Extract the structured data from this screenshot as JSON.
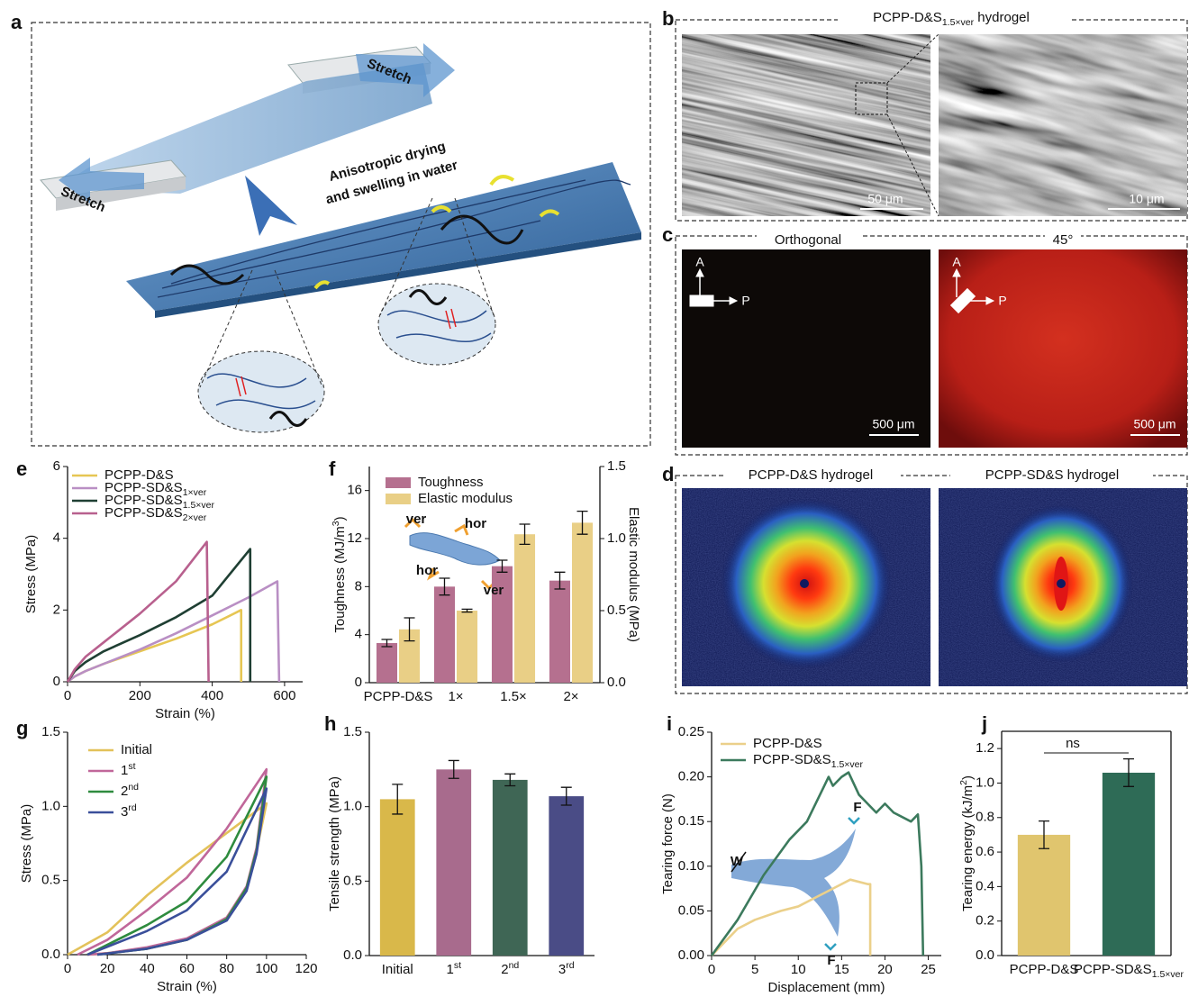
{
  "figure": {
    "a": {
      "label": "a",
      "stretch_top": "Stretch",
      "stretch_bottom": "Stretch",
      "process": [
        "Anisotropic drying",
        "and swelling in water"
      ]
    },
    "b": {
      "label": "b",
      "title": "PCPP-D&S1.5×ver hydrogel",
      "scale_bars": [
        "50 μm",
        "10 μm"
      ]
    },
    "c": {
      "label": "c",
      "titles": [
        "Orthogonal",
        "45°"
      ],
      "analyzer": "A",
      "polarizer": "P",
      "scale_bars": [
        "500 μm",
        "500 μm"
      ]
    },
    "d": {
      "label": "d",
      "titles": [
        "PCPP-D&S hydrogel",
        "PCPP-SD&S hydrogel"
      ]
    }
  },
  "chart_data": [
    {
      "panel": "e",
      "type": "line",
      "xlabel": "Strain (%)",
      "ylabel": "Stress (MPa)",
      "xlim": [
        0,
        650
      ],
      "ylim": [
        0,
        6
      ],
      "xticks": [
        0,
        200,
        400,
        600
      ],
      "yticks": [
        0,
        2,
        4,
        6
      ],
      "legend": "upper left",
      "series": [
        {
          "name": "PCPP-D&S",
          "color": "#e6c653",
          "x": [
            0,
            20,
            50,
            100,
            200,
            300,
            400,
            480,
            480
          ],
          "values": [
            0,
            0.15,
            0.3,
            0.5,
            0.85,
            1.2,
            1.6,
            2.0,
            0
          ]
        },
        {
          "name": "PCPP-SD&S1×ver",
          "color": "#b98fc4",
          "x": [
            0,
            20,
            50,
            100,
            200,
            300,
            400,
            500,
            580,
            585
          ],
          "values": [
            0,
            0.15,
            0.3,
            0.5,
            0.9,
            1.35,
            1.85,
            2.35,
            2.8,
            0
          ]
        },
        {
          "name": "PCPP-SD&S1.5×ver",
          "color": "#1f3f33",
          "x": [
            0,
            20,
            50,
            100,
            200,
            300,
            400,
            505,
            505
          ],
          "values": [
            0,
            0.3,
            0.55,
            0.85,
            1.3,
            1.8,
            2.4,
            3.7,
            0
          ]
        },
        {
          "name": "PCPP-SD&S2×ver",
          "color": "#b8608e",
          "x": [
            0,
            20,
            50,
            100,
            200,
            300,
            385,
            390
          ],
          "values": [
            0,
            0.35,
            0.7,
            1.1,
            1.9,
            2.8,
            3.9,
            0
          ]
        }
      ]
    },
    {
      "panel": "f",
      "type": "bar",
      "ylabel": "Toughness (MJ/m3)",
      "y2label": "Elastic modulus (MPa)",
      "categories": [
        "PCPP-D&S",
        "1×",
        "1.5×",
        "2×"
      ],
      "ylim": [
        0,
        18
      ],
      "yticks": [
        0,
        4,
        8,
        12,
        16
      ],
      "y2lim": [
        0,
        1.5
      ],
      "y2ticks": [
        {
          "value": 0,
          "label": "0.0"
        },
        0.5,
        {
          "value": 1,
          "label": "1.0"
        },
        1.5
      ],
      "legend": "upper left",
      "annotations": [
        "ver",
        "hor",
        "hor",
        "ver"
      ],
      "series": [
        {
          "name": "Toughness",
          "color": "#b5708f",
          "values": [
            3.3,
            8.0,
            9.7,
            8.5
          ],
          "errors": [
            0.3,
            0.7,
            0.5,
            0.7
          ]
        },
        {
          "name": "Elastic modulus",
          "color": "#e9cf86",
          "axis": "y2",
          "values": [
            0.37,
            0.5,
            1.03,
            1.11
          ],
          "errors": [
            0.08,
            0.01,
            0.07,
            0.08
          ]
        }
      ]
    },
    {
      "panel": "g",
      "type": "line",
      "xlabel": "Strain (%)",
      "ylabel": "Stress (MPa)",
      "xlim": [
        0,
        120
      ],
      "ylim": [
        0,
        1.5
      ],
      "xticks": [
        0,
        20,
        40,
        60,
        80,
        100,
        120
      ],
      "yticks": [
        {
          "value": 0,
          "label": "0.0"
        },
        0.5,
        {
          "value": 1,
          "label": "1.0"
        },
        1.5
      ],
      "legend": "upper left",
      "series": [
        {
          "name": "Initial",
          "color": "#e3c25a",
          "x": [
            0,
            20,
            40,
            60,
            80,
            100,
            95,
            90,
            80,
            60,
            40,
            20,
            10
          ],
          "values": [
            0,
            0.15,
            0.4,
            0.62,
            0.82,
            1.02,
            0.7,
            0.45,
            0.25,
            0.1,
            0.04,
            0.01,
            0
          ]
        },
        {
          "name": "1st",
          "color": "#c0679a",
          "x": [
            5,
            20,
            40,
            60,
            80,
            100,
            95,
            90,
            80,
            60,
            40,
            20,
            10
          ],
          "values": [
            0,
            0.1,
            0.3,
            0.52,
            0.85,
            1.25,
            0.72,
            0.46,
            0.25,
            0.11,
            0.05,
            0.01,
            0
          ]
        },
        {
          "name": "2nd",
          "color": "#2e8b3e",
          "x": [
            10,
            40,
            60,
            80,
            100,
            95,
            90,
            80,
            60,
            40,
            15
          ],
          "values": [
            0,
            0.2,
            0.36,
            0.66,
            1.2,
            0.7,
            0.45,
            0.24,
            0.1,
            0.04,
            0
          ]
        },
        {
          "name": "3rd",
          "color": "#3a4f9a",
          "x": [
            10,
            40,
            60,
            80,
            100,
            95,
            90,
            80,
            60,
            40,
            15
          ],
          "values": [
            0,
            0.16,
            0.3,
            0.56,
            1.12,
            0.68,
            0.43,
            0.23,
            0.1,
            0.04,
            0
          ]
        }
      ]
    },
    {
      "panel": "h",
      "type": "bar",
      "ylabel": "Tensile strength (MPa)",
      "categories": [
        "Initial",
        "1st",
        "2nd",
        "3rd"
      ],
      "ylim": [
        0,
        1.5
      ],
      "yticks": [
        {
          "value": 0,
          "label": "0.0"
        },
        0.5,
        {
          "value": 1,
          "label": "1.0"
        },
        1.5
      ],
      "values": [
        1.05,
        1.25,
        1.18,
        1.07
      ],
      "errors": [
        0.1,
        0.06,
        0.04,
        0.06
      ],
      "colors": [
        "#d9b84a",
        "#a86b8d",
        "#3f6655",
        "#4a4c86"
      ]
    },
    {
      "panel": "i",
      "type": "line",
      "xlabel": "Displacement (mm)",
      "ylabel": "Tearing force (N)",
      "xlim": [
        0,
        26.5
      ],
      "ylim": [
        0,
        0.25
      ],
      "xticks": [
        0,
        5,
        10,
        15,
        20,
        25
      ],
      "yticks": [
        {
          "value": 0,
          "label": "0.00"
        },
        {
          "value": 0.05,
          "label": "0.05"
        },
        {
          "value": 0.1,
          "label": "0.10"
        },
        {
          "value": 0.15,
          "label": "0.15"
        },
        {
          "value": 0.2,
          "label": "0.20"
        },
        {
          "value": 0.25,
          "label": "0.25"
        }
      ],
      "legend": "upper left",
      "annotations": [
        "W",
        "F",
        "F"
      ],
      "series": [
        {
          "name": "PCPP-D&S",
          "color": "#ebd08a",
          "x": [
            0,
            3,
            5,
            8,
            10,
            12,
            14,
            16,
            18,
            18.3,
            18.3
          ],
          "values": [
            0,
            0.03,
            0.04,
            0.05,
            0.055,
            0.065,
            0.075,
            0.085,
            0.08,
            0.08,
            0
          ]
        },
        {
          "name": "PCPP-SD&S1.5×ver",
          "color": "#3c7a5d",
          "x": [
            0,
            3,
            6,
            9,
            11,
            13,
            13.5,
            14,
            15,
            15.8,
            17,
            18,
            19,
            20,
            21,
            23,
            23.8,
            24.2,
            24.4
          ],
          "values": [
            0,
            0.04,
            0.09,
            0.13,
            0.15,
            0.19,
            0.2,
            0.19,
            0.2,
            0.205,
            0.18,
            0.17,
            0.16,
            0.17,
            0.16,
            0.15,
            0.158,
            0.1,
            0
          ]
        }
      ]
    },
    {
      "panel": "j",
      "type": "bar",
      "ylabel": "Tearing energy (kJ/m2)",
      "categories": [
        "PCPP-D&S",
        "PCPP-SD&S1.5×ver"
      ],
      "ylim": [
        0,
        1.3
      ],
      "yticks": [
        {
          "value": 0,
          "label": "0.0"
        },
        0.2,
        0.4,
        0.6,
        0.8,
        {
          "value": 1,
          "label": "1.0"
        },
        1.2
      ],
      "values": [
        0.7,
        1.06
      ],
      "errors": [
        0.08,
        0.08
      ],
      "colors": [
        "#e0c56e",
        "#2e6b56"
      ],
      "annotations": [
        "ns"
      ]
    }
  ]
}
